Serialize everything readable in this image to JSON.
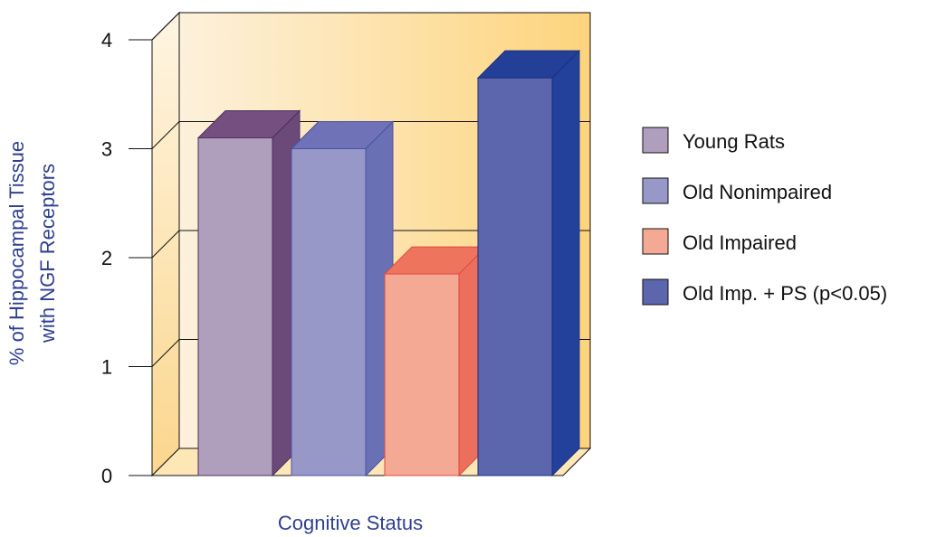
{
  "chart_data": {
    "type": "bar",
    "xlabel": "Cognitive Status",
    "ylabel_lines": [
      "% of Hippocampal Tissue",
      "with NGF Receptors"
    ],
    "ylim": [
      0,
      4
    ],
    "yticks": [
      "0",
      "1",
      "2",
      "3",
      "4"
    ],
    "grid": true,
    "projection": "3d",
    "legend_position": "right",
    "series": [
      {
        "name": "Young Rats",
        "value": 3.1,
        "front": "#b09fbc",
        "side": "#6b4a7a",
        "top": "#744f80",
        "edge": "#4a2f5e"
      },
      {
        "name": "Old Nonimpaired",
        "value": 3.0,
        "front": "#9898c8",
        "side": "#6a70b4",
        "top": "#6f72b6",
        "edge": "#4a52a0"
      },
      {
        "name": "Old Impaired",
        "value": 1.85,
        "front": "#f4a994",
        "side": "#ec6f5d",
        "top": "#ee745e",
        "edge": "#e04a3c"
      },
      {
        "name": "Old Imp. + PS (p<0.05)",
        "value": 3.65,
        "front": "#5c66ac",
        "side": "#23419a",
        "top": "#233f97",
        "edge": "#1b2f80"
      }
    ],
    "colors": {
      "wall_left": "#fdf1dc",
      "wall_right": "#fdd47c",
      "side_wall_top": "#fff5e3",
      "side_wall_bottom": "#fbd68d",
      "floor": "#fde7b6",
      "axis_title": "#2f3f91"
    }
  }
}
